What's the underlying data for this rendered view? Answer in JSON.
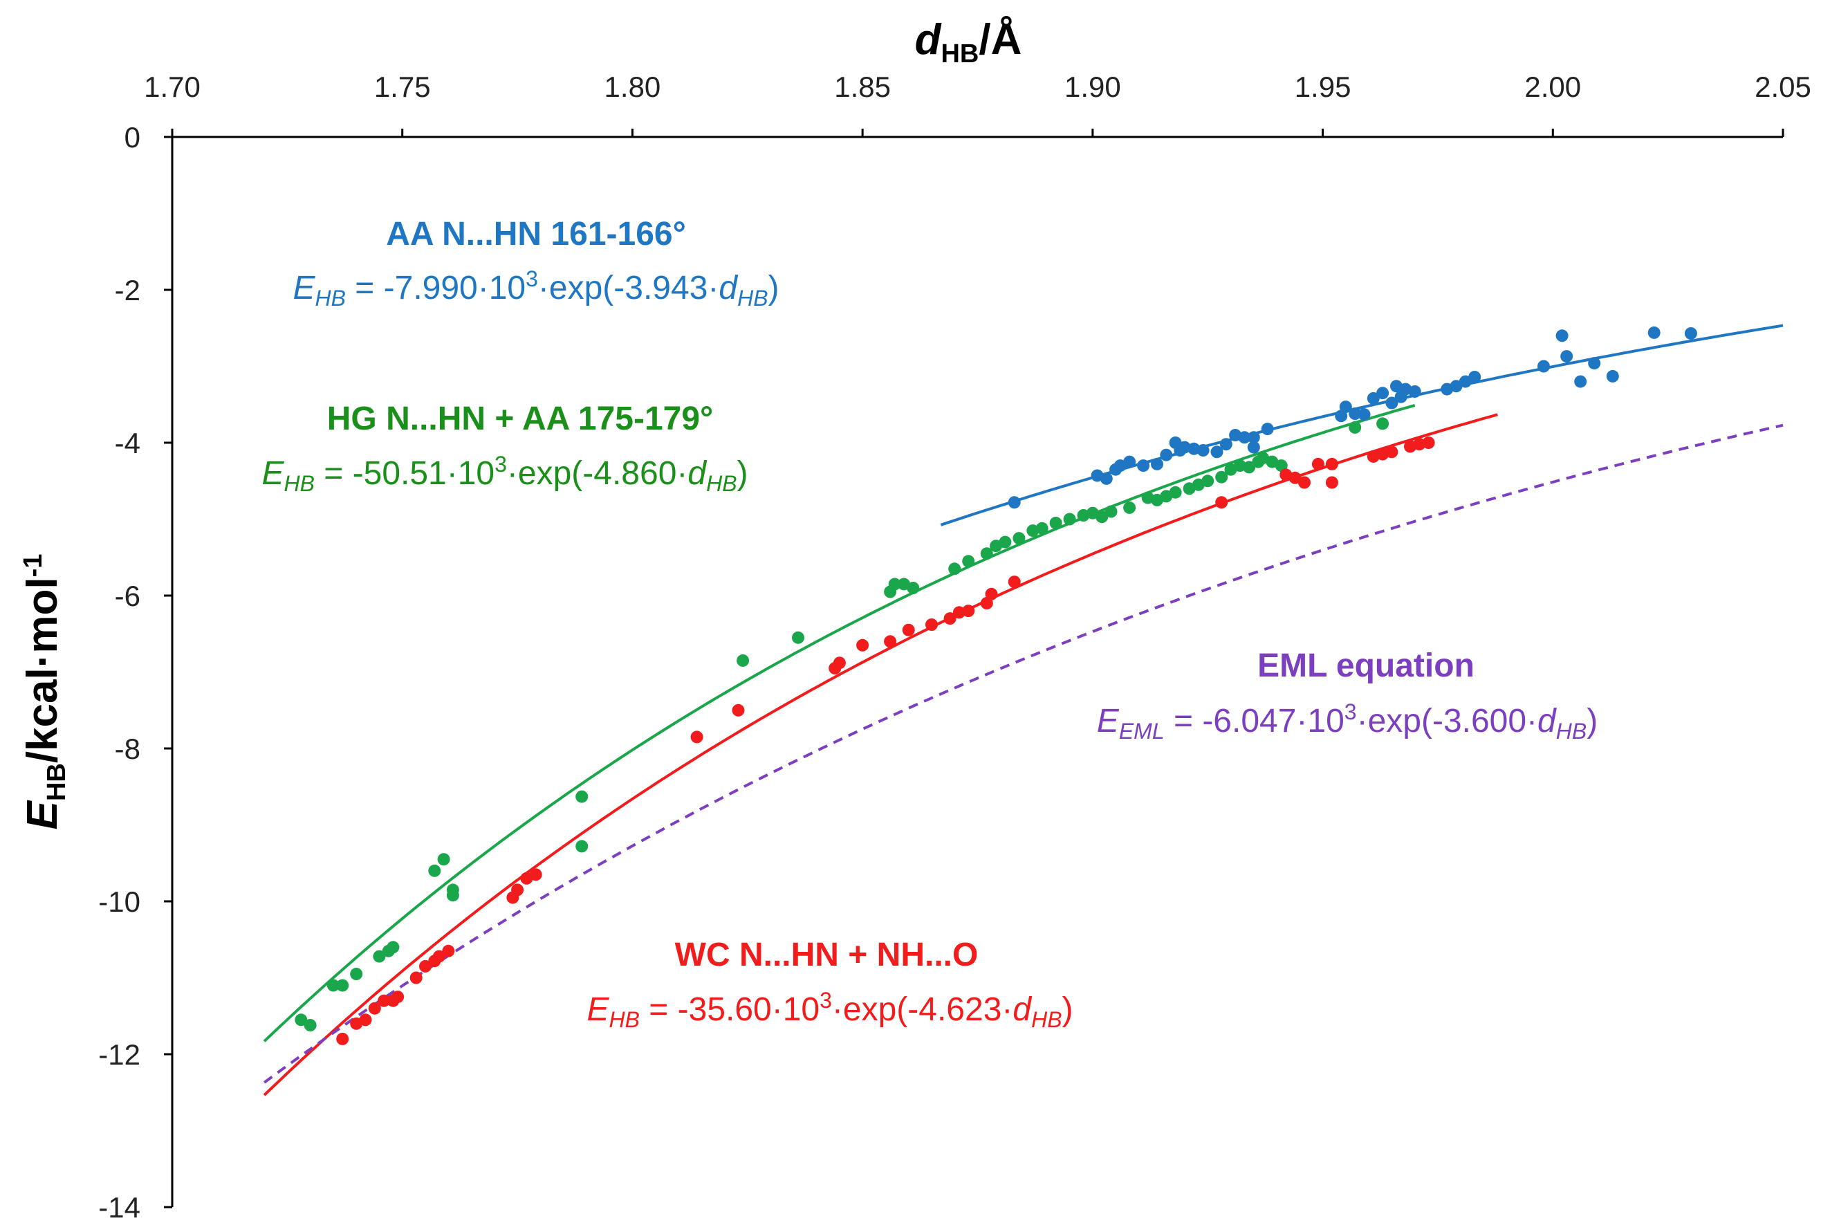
{
  "chart_data": {
    "type": "scatter",
    "xlabel": {
      "main": "d",
      "sub": "HB",
      "unit": "/Å"
    },
    "ylabel": {
      "main": "E",
      "sub": "HB",
      "unit": "/kcal·mol",
      "sup": "-1"
    },
    "xlim": [
      1.7,
      2.05
    ],
    "ylim": [
      -14,
      0
    ],
    "x_ticks": [
      "1.70",
      "1.75",
      "1.80",
      "1.85",
      "1.90",
      "1.95",
      "2.00",
      "2.05"
    ],
    "y_ticks": [
      "0",
      "-2",
      "-4",
      "-6",
      "-8",
      "-10",
      "-12",
      "-14"
    ],
    "x_axis_position": "top",
    "grid": false,
    "series": [
      {
        "name": "AA N...HN 161-166°",
        "color": "#1f77c4",
        "equation": {
          "lhs": "E",
          "lhs_sub": "HB",
          "coef": " = -7.990·10",
          "exp": "3",
          "body": "·exp(-3.943·",
          "var": "d",
          "var_sub": "HB",
          "close": ")"
        },
        "fit": {
          "a": -7990,
          "b": 3.943,
          "x_range": [
            1.867,
            2.05
          ],
          "dashed": false
        },
        "points": [
          [
            1.883,
            -4.78
          ],
          [
            1.901,
            -4.43
          ],
          [
            1.903,
            -4.47
          ],
          [
            1.905,
            -4.35
          ],
          [
            1.906,
            -4.3
          ],
          [
            1.908,
            -4.25
          ],
          [
            1.911,
            -4.3
          ],
          [
            1.914,
            -4.28
          ],
          [
            1.916,
            -4.16
          ],
          [
            1.918,
            -4.0
          ],
          [
            1.92,
            -4.06
          ],
          [
            1.919,
            -4.1
          ],
          [
            1.922,
            -4.08
          ],
          [
            1.924,
            -4.1
          ],
          [
            1.927,
            -4.12
          ],
          [
            1.929,
            -4.02
          ],
          [
            1.931,
            -3.9
          ],
          [
            1.933,
            -3.93
          ],
          [
            1.935,
            -4.06
          ],
          [
            1.935,
            -3.93
          ],
          [
            1.938,
            -3.82
          ],
          [
            1.954,
            -3.65
          ],
          [
            1.957,
            -3.62
          ],
          [
            1.955,
            -3.53
          ],
          [
            1.959,
            -3.63
          ],
          [
            1.961,
            -3.42
          ],
          [
            1.963,
            -3.35
          ],
          [
            1.965,
            -3.48
          ],
          [
            1.966,
            -3.26
          ],
          [
            1.967,
            -3.4
          ],
          [
            1.968,
            -3.3
          ],
          [
            1.97,
            -3.33
          ],
          [
            1.977,
            -3.3
          ],
          [
            1.979,
            -3.26
          ],
          [
            1.981,
            -3.2
          ],
          [
            1.983,
            -3.14
          ],
          [
            1.998,
            -3.0
          ],
          [
            2.002,
            -2.6
          ],
          [
            2.003,
            -2.87
          ],
          [
            2.006,
            -3.2
          ],
          [
            2.009,
            -2.96
          ],
          [
            2.013,
            -3.13
          ],
          [
            2.022,
            -2.56
          ],
          [
            2.03,
            -2.57
          ]
        ]
      },
      {
        "name": "HG N...HN + AA 175-179°",
        "color": "#1aa64a",
        "equation": {
          "lhs": "E",
          "lhs_sub": "HB",
          "coef": " = -50.51·10",
          "exp": "3",
          "body": "·exp(-4.860·",
          "var": "d",
          "var_sub": "HB",
          "close": ")"
        },
        "fit": {
          "a": -50510,
          "b": 4.86,
          "x_range": [
            1.72,
            1.97
          ],
          "dashed": false
        },
        "points": [
          [
            1.728,
            -11.55
          ],
          [
            1.73,
            -11.62
          ],
          [
            1.735,
            -11.1
          ],
          [
            1.737,
            -11.1
          ],
          [
            1.74,
            -10.95
          ],
          [
            1.745,
            -10.72
          ],
          [
            1.747,
            -10.65
          ],
          [
            1.748,
            -10.6
          ],
          [
            1.757,
            -9.6
          ],
          [
            1.759,
            -9.45
          ],
          [
            1.761,
            -9.85
          ],
          [
            1.761,
            -9.92
          ],
          [
            1.789,
            -8.63
          ],
          [
            1.789,
            -9.28
          ],
          [
            1.824,
            -6.85
          ],
          [
            1.836,
            -6.55
          ],
          [
            1.856,
            -5.95
          ],
          [
            1.857,
            -5.85
          ],
          [
            1.859,
            -5.85
          ],
          [
            1.861,
            -5.9
          ],
          [
            1.87,
            -5.65
          ],
          [
            1.873,
            -5.55
          ],
          [
            1.877,
            -5.45
          ],
          [
            1.879,
            -5.35
          ],
          [
            1.881,
            -5.3
          ],
          [
            1.884,
            -5.25
          ],
          [
            1.887,
            -5.15
          ],
          [
            1.889,
            -5.12
          ],
          [
            1.892,
            -5.05
          ],
          [
            1.895,
            -5.0
          ],
          [
            1.898,
            -4.95
          ],
          [
            1.9,
            -4.92
          ],
          [
            1.902,
            -4.97
          ],
          [
            1.904,
            -4.9
          ],
          [
            1.908,
            -4.85
          ],
          [
            1.912,
            -4.72
          ],
          [
            1.914,
            -4.75
          ],
          [
            1.916,
            -4.7
          ],
          [
            1.918,
            -4.65
          ],
          [
            1.921,
            -4.6
          ],
          [
            1.923,
            -4.55
          ],
          [
            1.925,
            -4.5
          ],
          [
            1.928,
            -4.45
          ],
          [
            1.93,
            -4.35
          ],
          [
            1.932,
            -4.3
          ],
          [
            1.934,
            -4.32
          ],
          [
            1.936,
            -4.25
          ],
          [
            1.937,
            -4.2
          ],
          [
            1.939,
            -4.25
          ],
          [
            1.941,
            -4.3
          ],
          [
            1.957,
            -3.8
          ],
          [
            1.963,
            -3.75
          ]
        ]
      },
      {
        "name": "WC N...HN + NH...O",
        "color": "#f21c1c",
        "equation": {
          "lhs": "E",
          "lhs_sub": "HB",
          "coef": " = -35.60·10",
          "exp": "3",
          "body": "·exp(-4.623·",
          "var": "d",
          "var_sub": "HB",
          "close": ")"
        },
        "fit": {
          "a": -35600,
          "b": 4.623,
          "x_range": [
            1.72,
            1.988
          ],
          "dashed": false
        },
        "points": [
          [
            1.737,
            -11.8
          ],
          [
            1.74,
            -11.6
          ],
          [
            1.742,
            -11.55
          ],
          [
            1.744,
            -11.4
          ],
          [
            1.746,
            -11.3
          ],
          [
            1.748,
            -11.3
          ],
          [
            1.749,
            -11.25
          ],
          [
            1.753,
            -11.0
          ],
          [
            1.755,
            -10.85
          ],
          [
            1.757,
            -10.78
          ],
          [
            1.758,
            -10.72
          ],
          [
            1.76,
            -10.65
          ],
          [
            1.774,
            -9.95
          ],
          [
            1.775,
            -9.85
          ],
          [
            1.777,
            -9.7
          ],
          [
            1.779,
            -9.65
          ],
          [
            1.814,
            -7.85
          ],
          [
            1.823,
            -7.5
          ],
          [
            1.844,
            -6.95
          ],
          [
            1.845,
            -6.88
          ],
          [
            1.85,
            -6.65
          ],
          [
            1.856,
            -6.6
          ],
          [
            1.86,
            -6.45
          ],
          [
            1.865,
            -6.38
          ],
          [
            1.869,
            -6.3
          ],
          [
            1.871,
            -6.22
          ],
          [
            1.873,
            -6.2
          ],
          [
            1.877,
            -6.1
          ],
          [
            1.878,
            -5.98
          ],
          [
            1.883,
            -5.82
          ],
          [
            1.928,
            -4.78
          ],
          [
            1.942,
            -4.42
          ],
          [
            1.944,
            -4.46
          ],
          [
            1.946,
            -4.52
          ],
          [
            1.949,
            -4.28
          ],
          [
            1.952,
            -4.28
          ],
          [
            1.952,
            -4.52
          ],
          [
            1.961,
            -4.18
          ],
          [
            1.963,
            -4.15
          ],
          [
            1.965,
            -4.12
          ],
          [
            1.969,
            -4.05
          ],
          [
            1.971,
            -4.02
          ],
          [
            1.973,
            -4.0
          ]
        ]
      },
      {
        "name": "EML equation",
        "color": "#7b3fbf",
        "equation": {
          "lhs": "E",
          "lhs_sub": "EML",
          "coef": " = -6.047·10",
          "exp": "3",
          "body": "·exp(-3.600·",
          "var": "d",
          "var_sub": "HB",
          "close": ")"
        },
        "fit": {
          "a": -6047,
          "b": 3.6,
          "x_range": [
            1.72,
            2.05
          ],
          "dashed": true
        },
        "points": []
      }
    ]
  }
}
